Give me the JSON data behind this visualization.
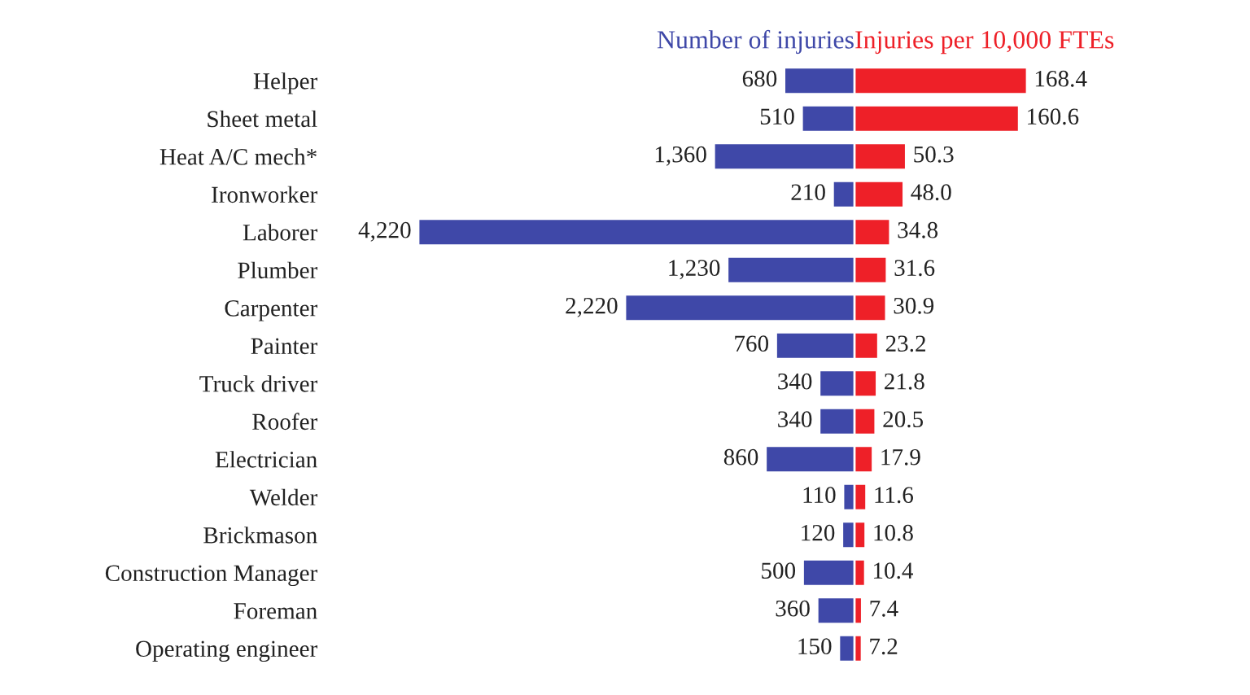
{
  "chart_data": [
    {
      "type": "bar",
      "orientation": "horizontal",
      "title": "Number of injuries",
      "categories": [
        "Helper",
        "Sheet metal",
        "Heat A/C mech*",
        "Ironworker",
        "Laborer",
        "Plumber",
        "Carpenter",
        "Painter",
        "Truck driver",
        "Roofer",
        "Electrician",
        "Welder",
        "Brickmason",
        "Construction Manager",
        "Foreman",
        "Operating engineer"
      ],
      "values": [
        680,
        510,
        1360,
        210,
        4220,
        1230,
        2220,
        760,
        340,
        340,
        860,
        110,
        120,
        500,
        360,
        150
      ],
      "value_labels": [
        "680",
        "510",
        "1,360",
        "210",
        "4,220",
        "1,230",
        "2,220",
        "760",
        "340",
        "340",
        "860",
        "110",
        "120",
        "500",
        "360",
        "150"
      ],
      "color": "#3f48a8",
      "tick_labels": "y"
    },
    {
      "type": "bar",
      "orientation": "horizontal",
      "title": "Injuries per 10,000 FTEs",
      "values": [
        168.4,
        160.6,
        50.3,
        48.0,
        34.8,
        31.6,
        30.9,
        23.2,
        21.8,
        20.5,
        17.9,
        11.6,
        10.8,
        10.4,
        7.4,
        7.2
      ],
      "value_labels": [
        "168.4",
        "160.6",
        "50.3",
        "48.0",
        "34.8",
        "31.6",
        "30.9",
        "23.2",
        "21.8",
        "20.5",
        "17.9",
        "11.6",
        "10.8",
        "10.4",
        "7.4",
        "7.2"
      ],
      "color": "#ee2028",
      "tick_labels": false
    }
  ]
}
